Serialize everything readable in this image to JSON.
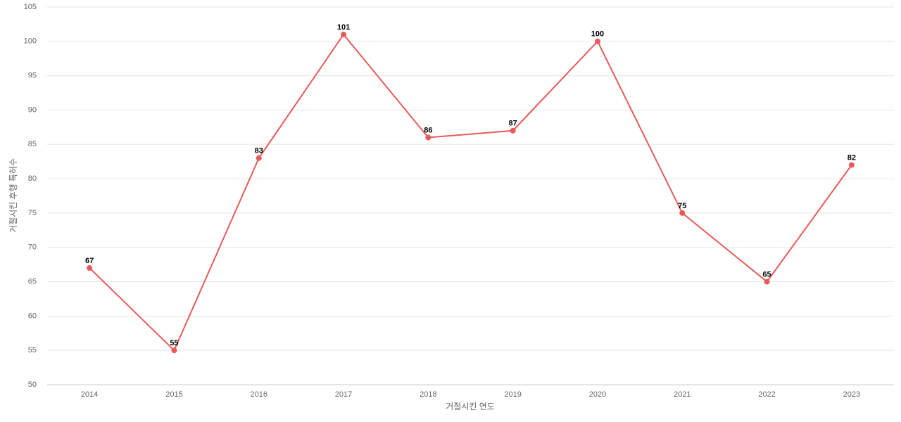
{
  "chart_data": {
    "type": "line",
    "x_label": "거절시킨 연도",
    "y_label": "거절시킨 후행 특허수",
    "categories": [
      "2014",
      "2015",
      "2016",
      "2017",
      "2018",
      "2019",
      "2020",
      "2021",
      "2022",
      "2023"
    ],
    "values": [
      67,
      55,
      83,
      101,
      86,
      87,
      100,
      75,
      65,
      82
    ],
    "color": "#e85a5a",
    "ylim": [
      50,
      105
    ],
    "yticks": [
      50,
      55,
      60,
      65,
      70,
      75,
      80,
      85,
      90,
      95,
      100,
      105
    ],
    "grid": true
  }
}
